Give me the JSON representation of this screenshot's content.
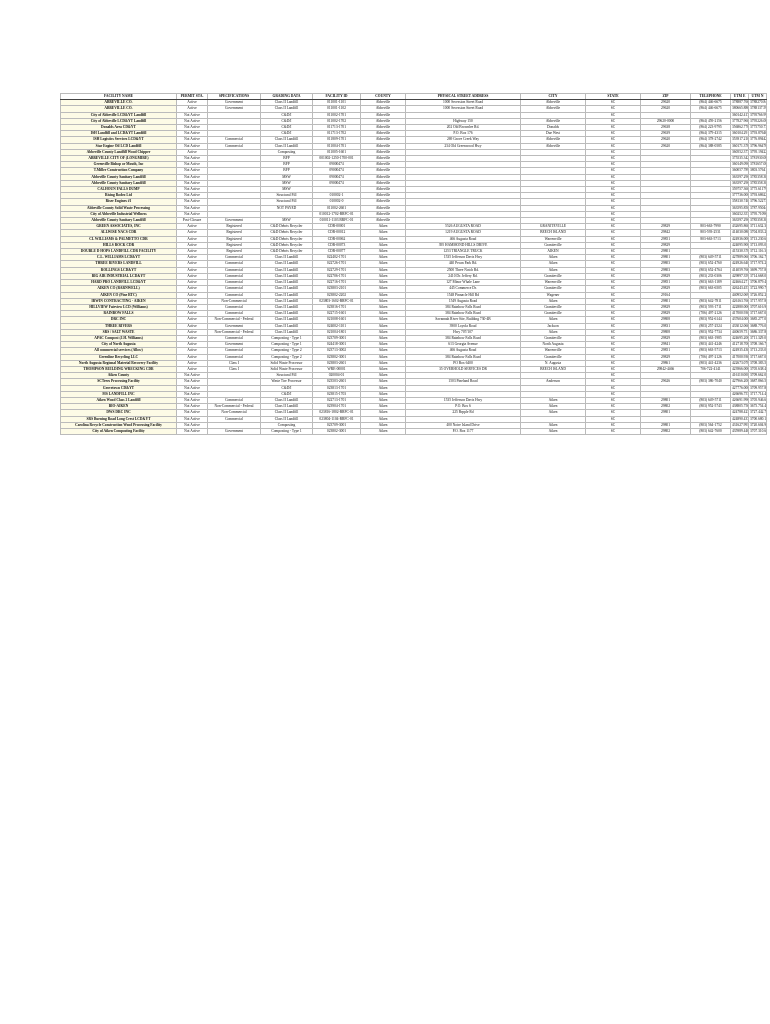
{
  "table": {
    "header": [
      "FACILITY NAME",
      "PERMIT STA.",
      "SPECIFICATIONS",
      "GRADING DATA",
      "FACILITY ID",
      "COUNTY",
      "PHYSICAL STREET ADDRESS",
      "CITY",
      "STATE",
      "ZIP",
      "TELEPHONE",
      "UTM E",
      "UTM N"
    ],
    "rows": [
      [
        "ABBEVILLE CO.",
        "Active",
        "Government",
        "Class II Landfill",
        "011001-1101",
        "Abbeville",
        "1000 Secession Street Road",
        "Abbeville",
        "SC",
        "29620",
        "(864) 446-6675",
        "378887.766000",
        "3788270.844000"
      ],
      [
        "ABBEVILLE CO.",
        "Active",
        "Government",
        "Class II Landfill",
        "011001-1102",
        "Abbeville",
        "1000 Secession Street Road",
        "Abbeville",
        "SC",
        "29620",
        "(864) 446-6675",
        "380665.886000",
        "3788137.590000"
      ],
      [
        "City of Abbeville LCD&YT Landfill",
        "Not Active",
        "",
        "C&D/I",
        "011002-1701",
        "Abbeville",
        "",
        "",
        "SC",
        "",
        "",
        "360142.417000",
        "3795766.990000"
      ],
      [
        "City of Abbeville LCD&YT Landfill",
        "Not Active",
        "",
        "C&D/I",
        "011002-1702",
        "Abbeville",
        "Highway 150",
        "Abbeville",
        "SC",
        "29620-0000",
        "(864) 459-2156",
        "377827.960000",
        "3795226.088000"
      ],
      [
        "Donalds Area CD&YT",
        "Not Active",
        "",
        "C&D/I",
        "011713-1701",
        "Abbeville",
        "202 Old Brownlee Rd.",
        "Donalds",
        "SC",
        "29638",
        "(864) 223-9795",
        "356862.770000",
        "3775750.770000"
      ],
      [
        "ISH Landfill and LCD&YT Landfill",
        "Not Active",
        "",
        "C&D/I",
        "011713-1702",
        "Abbeville",
        "P.O. Box 176",
        "Due West",
        "SC",
        "29639",
        "(864) 379-4315",
        "360104.291000",
        "3793.876461000"
      ],
      [
        "ISH Logistics Services LCD&YT",
        "Not Active",
        "Commercial",
        "Class II Landfill",
        "011809-1701",
        "Abbeville",
        "269 Grove Creek Way",
        "Abbeville",
        "SC",
        "29620",
        "(864) 378-2742",
        "353917.210000",
        "3776.894421000"
      ],
      [
        "Star Engine Oil LCD Landfill",
        "Not Active",
        "Commercial",
        "Class II Landfill",
        "011004-1701",
        "Abbeville",
        "234 Old Greenwood Hwy",
        "Abbeville",
        "SC",
        "29620",
        "(864) 388-0585",
        "360171.376250",
        "3796.964766000"
      ],
      [
        "Abbeville County Landfill Wood Chipper",
        "Active",
        "",
        "Composting",
        "011005-1601",
        "Abbeville",
        "",
        "",
        "SC",
        "",
        "",
        "360552.377000",
        "3795.194223000"
      ],
      [
        "ABBEVILLE CITY OF (LONGMIRE)",
        "Not Active",
        "",
        "BFP",
        "001002-1250-1700-001",
        "Abbeville",
        "",
        "",
        "SC",
        "",
        "",
        "375535.342000",
        "3781930.085000"
      ],
      [
        "Greenville Bishop or Mouth, Inc",
        "Not Active",
        "",
        "BFP",
        "09000474",
        "Abbeville",
        "",
        "",
        "SC",
        "",
        "",
        "360149.090000",
        "3781657.081000"
      ],
      [
        "T.Miller Construction Company",
        "Not Active",
        "",
        "BFP",
        "09000474",
        "Abbeville",
        "",
        "",
        "SC",
        "",
        "",
        "360057.789000",
        "3803.576413000"
      ],
      [
        "Abbeville County Sanitary Landfill",
        "Not Active",
        "",
        "MSW",
        "09000474",
        "Abbeville",
        "",
        "",
        "SC",
        "",
        "",
        "363597.290000",
        "3785358.384000"
      ],
      [
        "Abbeville County Sanitary Landfill",
        "Not Active",
        "",
        "MSW",
        "09000474",
        "Abbeville",
        "",
        "",
        "SC",
        "",
        "",
        "363597.290000",
        "3785358.384000"
      ],
      [
        "CALHOUN FALLS DUMP",
        "Not Active",
        "",
        "MSW",
        "",
        "Abbeville",
        "",
        "",
        "SC",
        "",
        "",
        "359757.360000",
        "3775.611792000"
      ],
      [
        "Rising Rodeo Ltd",
        "Not Active",
        "",
        "Structural Fill",
        "010002-1",
        "Abbeville",
        "",
        "",
        "SC",
        "",
        "",
        "377736.000000",
        "3793.686220000"
      ],
      [
        "Riser Engines #1",
        "Not Active",
        "",
        "Structural Fill",
        "010002-0",
        "Abbeville",
        "",
        "",
        "SC",
        "",
        "",
        "358130.740000",
        "3796.522734000"
      ],
      [
        "Abbeville County Solid Waste Processing",
        "Not Active",
        "",
        "NOT PAYED",
        "011002-2601",
        "Abbeville",
        "",
        "",
        "SC",
        "",
        "",
        "363595.850000",
        "3787.950444000"
      ],
      [
        "City of Abbeville Industrial Wellness",
        "Not Active",
        "",
        "",
        "010012-1702-BRFC-01",
        "Abbeville",
        "",
        "",
        "SC",
        "",
        "",
        "360252.357000",
        "3795.710902000"
      ],
      [
        "Abbeville County Sanitary Landfill",
        "Post-Closure",
        "Government",
        "MSW",
        "010011-1103 BRFC-01",
        "Abbeville",
        "",
        "",
        "SC",
        "",
        "",
        "363597.290000",
        "3785358.384000"
      ],
      [
        "GREEN ASSOCIATES, INC",
        "Active",
        "Registered",
        "C&D Debris Recycler",
        "CDR-00001",
        "Aiken",
        "5526 AUGUSTA ROAD",
        "GRANITEVILLE",
        "SC",
        "29829",
        "803-663-7990",
        "432695.860000",
        "3711.632.310000"
      ],
      [
        "ALLWISE NACS CDR",
        "Active",
        "Registered",
        "C&D Debris Recycler",
        "CDR-00012",
        "Aiken",
        "1219 AUGUSTA ROAD",
        "BEECH ISLAND",
        "SC",
        "29842",
        "803-593-2531",
        "414030.080000",
        "3704.833.200000"
      ],
      [
        "CL WILLIAMS & PALMETTO CDR",
        "Active",
        "Registered",
        "C&D Debris Recycler",
        "CDR-00062",
        "Aiken",
        "466 Augusta Road",
        "Warrenville",
        "SC",
        "29851",
        "803-663-5713",
        "424936.000000",
        "3713.230.600000"
      ],
      [
        "HILLS ROCK CDR",
        "Active",
        "Registered",
        "C&D Debris Recycler",
        "CDR-00073",
        "Aiken",
        "395 HAMMOND HILLS DRIVE",
        "Graniteville",
        "SC",
        "29829",
        "",
        "424095.900000",
        "3713.093.000000"
      ],
      [
        "DOUBLE D HOPS LANDFILL CDR FACILITY",
        "Active",
        "Registered",
        "C&D Debris Recycler",
        "CDR-00077",
        "Aiken",
        "1253 TRIANGLE TRUCK",
        "AIKEN",
        "SC",
        "29801",
        "",
        "415330.370000",
        "3712.116.356000"
      ],
      [
        "C.L. WILLIAMS LCD&YT",
        "Active",
        "Commercial",
        "Class II Landfill",
        "022402-1701",
        "Aiken",
        "1535 Jefferson Davis Hwy",
        "Aiken",
        "SC",
        "29801",
        "(803) 649-5711",
        "427889.060000",
        "3706.162.704000"
      ],
      [
        "THREE RIVERS LANDFILL",
        "Active",
        "Commercial",
        "Class II Landfill",
        "022726-1701",
        "Aiken",
        "440 Pecan Park Rd.",
        "Aiken",
        "SC",
        "29803",
        "(803) 652-4760",
        "424926.640000",
        "3717.974.201000"
      ],
      [
        "ROLLINGS LCD&YT",
        "Active",
        "Commercial",
        "Class II Landfill",
        "022729-1701",
        "Aiken",
        "2500 Three Notch Rd.",
        "Aiken",
        "SC",
        "29803",
        "(803) 652-4764",
        "414059.766000",
        "3699.757.876000"
      ],
      [
        "BIG AIR INDUSTRIAL LCD&YT",
        "Active",
        "Commercial",
        "Class II Landfill",
        "022706-1701",
        "Aiken",
        "2410 Dr. Jeffery Rd.",
        "Graniteville",
        "SC",
        "29829",
        "(803) 233-0306",
        "429897.359070",
        "3714.668.070000"
      ],
      [
        "HARD PRO LANDFILL LCD&YT",
        "Active",
        "Commercial",
        "Class II Landfill",
        "022716-1701",
        "Aiken",
        "127 Minor Whale Lane",
        "Warrenville",
        "SC",
        "29851",
        "(803) 663-1189",
        "424664.271900",
        "3706.879.462000"
      ],
      [
        "AIKEN CO (BARNWELL)",
        "Active",
        "Commercial",
        "Class II Landfill",
        "023803-2101",
        "Aiken",
        "445 Commerce Dr.",
        "Graniteville",
        "SC",
        "29829",
        "(803) 663-6505",
        "426243.457700",
        "3722.990.756000"
      ],
      [
        "AIKEN CO (Pine RTC)",
        "Active",
        "Commercial",
        "Class II Landfill",
        "023802-2202",
        "Aiken",
        "1548 Pinnacle Hill Rd",
        "Wagener",
        "SC",
        "29164",
        "",
        "440952.069000",
        "3726.852.200000"
      ],
      [
        "IRWIN CONTRACTING - AIKEN",
        "Active",
        "Non-Commercial",
        "Class II Landfill",
        "023803-1602-BRFC-01",
        "Aiken",
        "1549 Augusta Road",
        "Aiken",
        "SC",
        "29801",
        "(803) 642-7811",
        "426163.766000",
        "3717.957.886000"
      ],
      [
        "HILLVIEW Fairview LCD (Williams)",
        "Active",
        "Commercial",
        "Class II Landfill",
        "023816-1701",
        "Aiken",
        "384 Rainbow Falls Road",
        "Graniteville",
        "SC",
        "29829",
        "(803) 593-1711",
        "422880.006000",
        "3707.616.960000"
      ],
      [
        "RAINBOW FALLS",
        "Active",
        "Commercial",
        "Class II Landfill",
        "022715-1601",
        "Aiken",
        "384 Rainbow Falls Road",
        "Graniteville",
        "SC",
        "29829",
        "(706) 497-2126",
        "417000.936000",
        "3717.667.075000"
      ],
      [
        "DRC INC",
        "Active",
        "Non-Commercial - Federal",
        "Class II Landfill",
        "021008-1601",
        "Aiken",
        "Savannah River Site, Building 730-4B",
        "Aiken",
        "SC",
        "29808",
        "(803) 952-6144",
        "437604.000000",
        "3685.277.000000"
      ],
      [
        "THREE RIVERS",
        "Active",
        "Government",
        "Class II Landfill",
        "024002-1101",
        "Aiken",
        "3900 Loyola Road",
        "Jackson",
        "SC",
        "29831",
        "(803) 257-2524",
        "433012.060000",
        "3688.776.077000"
      ],
      [
        "SRS / SALT WASTE",
        "Active",
        "Non-Commercial - Federal",
        "Class II Landfill",
        "021004-1801",
        "Aiken",
        "Hwy 707/107",
        "Aiken",
        "SC",
        "29808",
        "(803) 952-7734",
        "440659.751100",
        "3686.337.800000"
      ],
      [
        "APAC Compost (J.H. Williams)",
        "Active",
        "Commercial",
        "Composting - Type 1",
        "023709-3001",
        "Aiken",
        "384 Rainbow Falls Road",
        "Graniteville",
        "SC",
        "29829",
        "(803) 663-1985",
        "424695.206000",
        "3711.329.000000"
      ],
      [
        "City of North Augusta",
        "Active",
        "Government",
        "Composting - Type 1",
        "024418-3001",
        "Aiken",
        "613 Georgia Avenue",
        "North Augusta",
        "SC",
        "29841",
        "(803) 441-4246",
        "412718.706000",
        "3708.166.755000"
      ],
      [
        "All commercial services (Allow)",
        "Active",
        "Commercial",
        "Composting - Type 2",
        "023713-3002",
        "Aiken",
        "466 Augusta Road",
        "Warrenville",
        "SC",
        "29851",
        "(803) 663-5713",
        "424935.430000",
        "3713.233.090000"
      ],
      [
        "Greenline Recycling LLC",
        "Active",
        "Commercial",
        "Composting - Type 2",
        "023802-3001",
        "Aiken",
        "384 Rainbow Falls Road",
        "Graniteville",
        "SC",
        "29829",
        "(706) 497-2126",
        "417000.936000",
        "3717.667.075000"
      ],
      [
        "North Augusta Regional Material Recovery Facility",
        "Active",
        "Class I",
        "Solid Waste Processor",
        "023803-2601",
        "Aiken",
        "PO Box 6400",
        "N. Augusta",
        "SC",
        "29861",
        "(803) 441-4236",
        "422673.070000",
        "3708.383.576000"
      ],
      [
        "THOMPSON BUILDING WRECKING CDR",
        "Active",
        "Class I",
        "Solid Waste Processor",
        "WRE-00001",
        "Aiken",
        "35 OVERHOLD SERVICES DR",
        "BEECH ISLAND",
        "SC",
        "29842-4466",
        "706-722-4141",
        "423966.006000",
        "3705.638.440000"
      ],
      [
        "Aiken County",
        "Not Active",
        "",
        "Structural Fill",
        "020004-01",
        "Aiken",
        "",
        "",
        "SC",
        "",
        "",
        "416110.000000",
        "3709.662.000000"
      ],
      [
        "SCTrees Processing Facility",
        "Not Active",
        "",
        "Waste Tire Processor",
        "023503-2601",
        "Aiken",
        "1503 Pineland Road",
        "Anderson",
        "SC",
        "29626",
        "(803) 386-7040",
        "427966.200000",
        "3687.866.510000"
      ],
      [
        "Grovetown CD&YT",
        "Not Active",
        "",
        "C&D/I",
        "023813-1701",
        "Aiken",
        "",
        "",
        "SC",
        "",
        "",
        "427776.000000",
        "3709.957.840000"
      ],
      [
        "MS LANDFILL INC",
        "Not Active",
        "",
        "C&D/I",
        "023815-1703",
        "Aiken",
        "",
        "",
        "SC",
        "",
        "",
        "426696.757700",
        "3717.714.460000"
      ],
      [
        "Aiken Wood Class 2 Landfill",
        "Not Active",
        "Commercial",
        "Class II Landfill",
        "022713-1701",
        "Aiken",
        "1535 Jefferson Davis Hwy",
        "Aiken",
        "SC",
        "29801",
        "(803) 649-5711",
        "426691.996000",
        "3705.946.677500"
      ],
      [
        "BIO-AIKEN",
        "Not Active",
        "Non-Commercial - Federal",
        "Class II Landfill",
        "023904-1701",
        "Aiken",
        "P.O. Box 6",
        "Aiken",
        "SC",
        "29802",
        "(803) 952-5743",
        "438805.756000",
        "3675.754.405000"
      ],
      [
        "DWS DRC INC",
        "Not Active",
        "Non-Commercial",
        "Class II Landfill",
        "023816-1802-BRFC-01",
        "Aiken",
        "225 Brpple Rd",
        "Aiken",
        "SC",
        "29801",
        "",
        "424788.423570",
        "3727.442.769000"
      ],
      [
        "SRS Burning Road Long Crest LCD&YT",
        "Not Active",
        "Commercial",
        "Class II Landfill",
        "023804-1104-BRFC-01",
        "Aiken",
        "",
        "",
        "SC",
        "",
        "",
        "424890.437800",
        "3700.680.180000"
      ],
      [
        "Carolina Recycle Construction Wood Processing Facility",
        "Not Active",
        "",
        "Composting",
        "023709-3001",
        "Aiken",
        "400 Notre Island Drive",
        "Aiken",
        "SC",
        "29801",
        "(803) 564-1752",
        "431627.993700",
        "3720.604.963000"
      ],
      [
        "City of Aiken Composting Facility",
        "Not Active",
        "Government",
        "Composting - Type 1",
        "023802-3001",
        "Aiken",
        "P.O. Box 1177",
        "Aiken",
        "SC",
        "29802",
        "(803) 642-7600",
        "435989.446870",
        "3707.310.656000"
      ]
    ]
  }
}
